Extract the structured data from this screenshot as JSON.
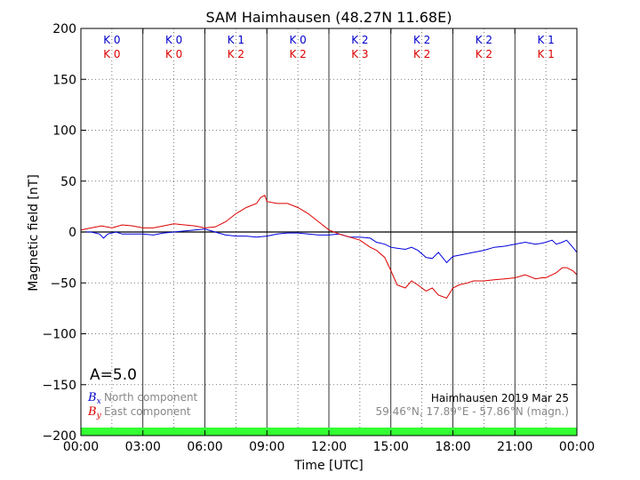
{
  "chart_data": {
    "type": "line",
    "title": "SAM Haimhausen (48.27N 11.68E)",
    "xlabel": "Time [UTC]",
    "ylabel": "Magnetic field [nT]",
    "xlim": [
      0,
      24
    ],
    "ylim": [
      -200,
      200
    ],
    "x_ticks": [
      0,
      3,
      6,
      9,
      12,
      15,
      18,
      21,
      24
    ],
    "x_tick_labels": [
      "00:00",
      "03:00",
      "06:00",
      "09:00",
      "12:00",
      "15:00",
      "18:00",
      "21:00",
      "00:00"
    ],
    "y_ticks": [
      -200,
      -150,
      -100,
      -50,
      0,
      50,
      100,
      150,
      200
    ],
    "y_tick_labels": [
      "−200",
      "−150",
      "−100",
      "−50",
      "0",
      "50",
      "100",
      "150",
      "200"
    ],
    "grid": true,
    "k_index": {
      "x_index": [
        "K 0",
        "K 0",
        "K 1",
        "K 0",
        "K 2",
        "K 2",
        "K 2",
        "K 1"
      ],
      "y_index": [
        "K 0",
        "K 0",
        "K 2",
        "K 2",
        "K 3",
        "K 2",
        "K 2",
        "K 1"
      ]
    },
    "a_index_label": "A=5.0",
    "legend": [
      {
        "symbol": "B",
        "subscript": "x",
        "text": "North component",
        "color": "#0000cc"
      },
      {
        "symbol": "B",
        "subscript": "y",
        "text": "East component",
        "color": "#dd0000"
      }
    ],
    "info_line1": "Haimhausen 2019 Mar 25",
    "info_line2": "59.46°N, 17.89°E - 57.86°N (magn.)",
    "series": [
      {
        "name": "North component",
        "color": "#0000dd",
        "x": [
          0,
          0.5,
          0.9,
          1.1,
          1.3,
          1.7,
          2,
          2.5,
          3,
          3.5,
          4,
          4.5,
          5,
          5.5,
          6,
          6.5,
          7,
          7.5,
          8,
          8.5,
          9,
          9.5,
          10,
          10.5,
          11,
          11.5,
          12,
          12.5,
          13,
          13.5,
          14,
          14.3,
          14.7,
          15,
          15.3,
          15.7,
          16,
          16.3,
          16.7,
          17,
          17.3,
          17.7,
          18,
          18.5,
          19,
          19.5,
          20,
          20.5,
          21,
          21.5,
          22,
          22.3,
          22.5,
          22.8,
          23,
          23.3,
          23.5,
          23.8,
          24
        ],
        "y": [
          0,
          0,
          -2,
          -6,
          -2,
          0,
          -2,
          -2,
          -2,
          -3,
          -1,
          0,
          1,
          2,
          3,
          0,
          -3,
          -4,
          -4,
          -5,
          -4,
          -2,
          -1,
          -1,
          -2,
          -3,
          -3,
          -2,
          -5,
          -5,
          -6,
          -10,
          -12,
          -15,
          -16,
          -17,
          -15,
          -18,
          -25,
          -26,
          -20,
          -30,
          -24,
          -22,
          -20,
          -18,
          -15,
          -14,
          -12,
          -10,
          -12,
          -11,
          -10,
          -8,
          -12,
          -10,
          -8,
          -15,
          -20
        ]
      },
      {
        "name": "East component",
        "color": "#dd0000",
        "x": [
          0,
          0.5,
          1,
          1.5,
          2,
          2.5,
          3,
          3.5,
          4,
          4.5,
          5,
          5.5,
          6,
          6.5,
          7,
          7.5,
          8,
          8.5,
          8.7,
          8.9,
          9,
          9.5,
          10,
          10.5,
          11,
          11.5,
          12,
          12.5,
          13,
          13.5,
          14,
          14.3,
          14.7,
          15,
          15.3,
          15.7,
          16,
          16.3,
          16.7,
          17,
          17.3,
          17.7,
          18,
          18.3,
          18.7,
          19,
          19.5,
          20,
          20.5,
          21,
          21.5,
          22,
          22.3,
          22.5,
          22.8,
          23,
          23.3,
          23.5,
          23.8,
          24
        ],
        "y": [
          2,
          4,
          6,
          4,
          7,
          6,
          4,
          4,
          6,
          8,
          7,
          6,
          4,
          5,
          10,
          18,
          24,
          28,
          34,
          36,
          30,
          28,
          28,
          24,
          18,
          10,
          2,
          -2,
          -5,
          -8,
          -15,
          -18,
          -25,
          -38,
          -52,
          -55,
          -48,
          -52,
          -58,
          -55,
          -62,
          -65,
          -55,
          -52,
          -50,
          -48,
          -48,
          -47,
          -46,
          -45,
          -42,
          -46,
          -45,
          -45,
          -42,
          -40,
          -35,
          -35,
          -38,
          -42
        ]
      }
    ]
  }
}
